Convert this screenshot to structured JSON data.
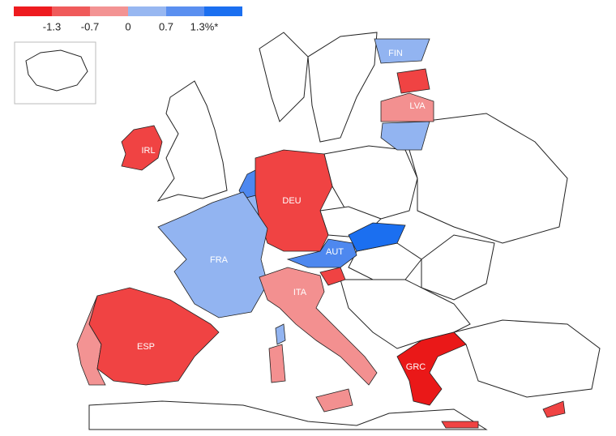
{
  "legend": {
    "colors": [
      "#ee1b1f",
      "#f05a5a",
      "#f39393",
      "#97b7f1",
      "#5a8ff0",
      "#1b6ff0"
    ],
    "ticks": [
      -1.3,
      -0.7,
      0,
      0.7,
      {
        "value": 1.3,
        "label": "1.3%*"
      }
    ]
  },
  "countries": [
    {
      "label": "IRL",
      "color": "#f04343"
    },
    {
      "label": "DEU",
      "color": "#f04343"
    },
    {
      "label": "FRA",
      "color": "#92b4f1"
    },
    {
      "label": "ESP",
      "color": "#f04343"
    },
    {
      "label": "ITA",
      "color": "#f39090"
    },
    {
      "label": "AUT",
      "color": "#4e88ef"
    },
    {
      "label": "GRC",
      "color": "#ea1818"
    },
    {
      "label": "FIN",
      "color": "#92b4f1"
    },
    {
      "label": "LVA",
      "color": "#f39090"
    }
  ]
}
